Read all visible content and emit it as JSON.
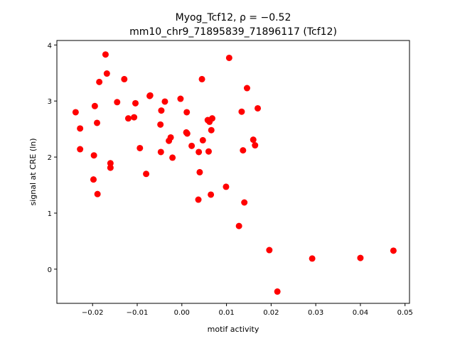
{
  "chart_data": {
    "type": "scatter",
    "title_line1": "Myog_Tcf12, ρ = −0.52",
    "title_line2": "mm10_chr9_71895839_71896117 (Tcf12)",
    "xlabel": "motif activity",
    "ylabel": "signal at CRE (ln)",
    "xlim": [
      -0.028,
      0.051
    ],
    "ylim": [
      -0.61,
      4.08
    ],
    "xticks": [
      -0.02,
      -0.01,
      0.0,
      0.01,
      0.02,
      0.03,
      0.04,
      0.05
    ],
    "xtick_labels": [
      "−0.02",
      "−0.01",
      "0.00",
      "0.01",
      "0.02",
      "0.03",
      "0.04",
      "0.05"
    ],
    "yticks": [
      0,
      1,
      2,
      3,
      4
    ],
    "ytick_labels": [
      "0",
      "1",
      "2",
      "3",
      "4"
    ],
    "grid": false,
    "point_color": "#ff0000",
    "points": [
      {
        "x": -0.0238,
        "y": 2.8
      },
      {
        "x": -0.0228,
        "y": 2.51
      },
      {
        "x": -0.0228,
        "y": 2.14
      },
      {
        "x": -0.0197,
        "y": 2.03
      },
      {
        "x": -0.0198,
        "y": 1.6
      },
      {
        "x": -0.0189,
        "y": 1.34
      },
      {
        "x": -0.0195,
        "y": 2.91
      },
      {
        "x": -0.019,
        "y": 2.61
      },
      {
        "x": -0.0185,
        "y": 3.34
      },
      {
        "x": -0.0171,
        "y": 3.83
      },
      {
        "x": -0.0168,
        "y": 3.49
      },
      {
        "x": -0.016,
        "y": 1.89
      },
      {
        "x": -0.016,
        "y": 1.81
      },
      {
        "x": -0.0145,
        "y": 2.98
      },
      {
        "x": -0.0129,
        "y": 3.39
      },
      {
        "x": -0.012,
        "y": 2.69
      },
      {
        "x": -0.0107,
        "y": 2.71
      },
      {
        "x": -0.0104,
        "y": 2.96
      },
      {
        "x": -0.0094,
        "y": 2.16
      },
      {
        "x": -0.008,
        "y": 1.7
      },
      {
        "x": -0.0072,
        "y": 3.09
      },
      {
        "x": -0.0071,
        "y": 3.1
      },
      {
        "x": -0.0048,
        "y": 2.58
      },
      {
        "x": -0.0047,
        "y": 2.09
      },
      {
        "x": -0.0046,
        "y": 2.83
      },
      {
        "x": -0.0038,
        "y": 2.99
      },
      {
        "x": -0.0029,
        "y": 2.29
      },
      {
        "x": -0.0025,
        "y": 2.35
      },
      {
        "x": -0.0021,
        "y": 1.99
      },
      {
        "x": -0.0003,
        "y": 3.04
      },
      {
        "x": 0.001,
        "y": 2.44
      },
      {
        "x": 0.0012,
        "y": 2.42
      },
      {
        "x": 0.0011,
        "y": 2.8
      },
      {
        "x": 0.0022,
        "y": 2.2
      },
      {
        "x": 0.0037,
        "y": 1.24
      },
      {
        "x": 0.0038,
        "y": 2.09
      },
      {
        "x": 0.004,
        "y": 1.73
      },
      {
        "x": 0.0045,
        "y": 3.39
      },
      {
        "x": 0.0047,
        "y": 2.3
      },
      {
        "x": 0.0058,
        "y": 2.66
      },
      {
        "x": 0.006,
        "y": 2.1
      },
      {
        "x": 0.0062,
        "y": 2.63
      },
      {
        "x": 0.0065,
        "y": 1.33
      },
      {
        "x": 0.0066,
        "y": 2.48
      },
      {
        "x": 0.0068,
        "y": 2.69
      },
      {
        "x": 0.0099,
        "y": 1.47
      },
      {
        "x": 0.0106,
        "y": 3.77
      },
      {
        "x": 0.0128,
        "y": 0.77
      },
      {
        "x": 0.0134,
        "y": 2.81
      },
      {
        "x": 0.0137,
        "y": 2.12
      },
      {
        "x": 0.014,
        "y": 1.19
      },
      {
        "x": 0.0146,
        "y": 3.23
      },
      {
        "x": 0.016,
        "y": 2.31
      },
      {
        "x": 0.0164,
        "y": 2.21
      },
      {
        "x": 0.017,
        "y": 2.87
      },
      {
        "x": 0.0196,
        "y": 0.34
      },
      {
        "x": 0.0214,
        "y": -0.4
      },
      {
        "x": 0.0292,
        "y": 0.19
      },
      {
        "x": 0.04,
        "y": 0.2
      },
      {
        "x": 0.0474,
        "y": 0.33
      }
    ]
  }
}
